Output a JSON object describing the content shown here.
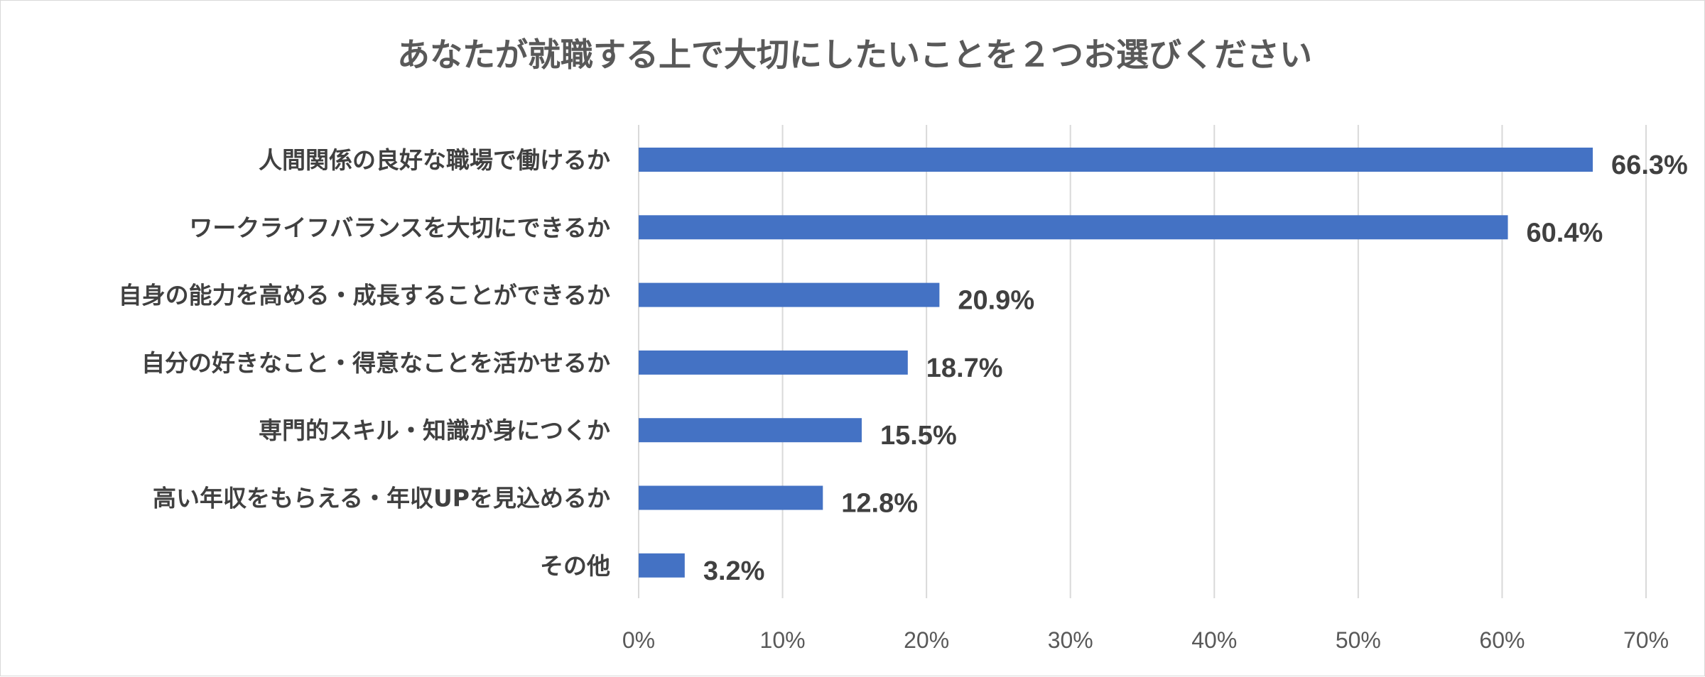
{
  "chart_data": {
    "type": "bar",
    "orientation": "horizontal",
    "title": "あなたが就職する上で大切にしたいことを２つお選びください",
    "categories": [
      "人間関係の良好な職場で働けるか",
      "ワークライフバランスを大切にできるか",
      "自身の能力を高める・成長することができるか",
      "自分の好きなこと・得意なことを活かせるか",
      "専門的スキル・知識が身につくか",
      "高い年収をもらえる・年収UPを見込めるか",
      "その他"
    ],
    "values": [
      66.3,
      60.4,
      20.9,
      18.7,
      15.5,
      12.8,
      3.2
    ],
    "data_labels": [
      "66.3%",
      "60.4%",
      "20.9%",
      "18.7%",
      "15.5%",
      "12.8%",
      "3.2%"
    ],
    "xlim": [
      0,
      70
    ],
    "ticks": [
      0,
      10,
      20,
      30,
      40,
      50,
      60,
      70
    ],
    "tick_labels": [
      "0%",
      "10%",
      "20%",
      "30%",
      "40%",
      "50%",
      "60%",
      "70%"
    ],
    "xlabel": "",
    "ylabel": "",
    "grid": true,
    "bar_color": "#4472c4"
  }
}
